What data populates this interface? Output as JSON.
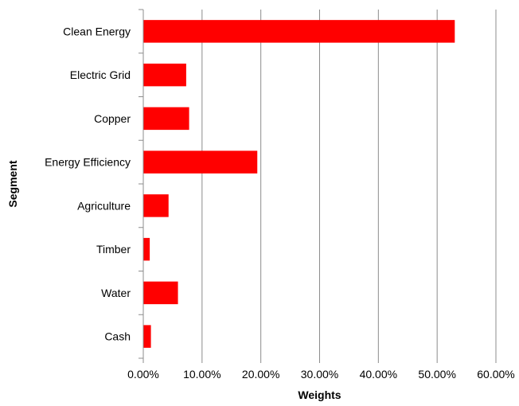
{
  "chart_data": {
    "type": "bar",
    "orientation": "horizontal",
    "categories": [
      "Clean Energy",
      "Electric Grid",
      "Copper",
      "Energy Efficiency",
      "Agriculture",
      "Timber",
      "Water",
      "Cash"
    ],
    "values": [
      0.53,
      0.073,
      0.078,
      0.194,
      0.043,
      0.011,
      0.059,
      0.013
    ],
    "xlabel": "Weights",
    "ylabel": "Segment",
    "xlim": [
      0,
      0.6
    ],
    "xticks": [
      0,
      0.1,
      0.2,
      0.3,
      0.4,
      0.5,
      0.6
    ],
    "xtick_labels": [
      "0.00%",
      "10.00%",
      "20.00%",
      "30.00%",
      "40.00%",
      "50.00%",
      "60.00%"
    ],
    "grid": "vertical",
    "legend": "none",
    "bar_color": "#ff0000"
  }
}
